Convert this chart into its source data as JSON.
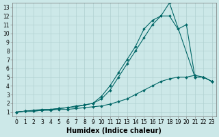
{
  "xlabel": "Humidex (Indice chaleur)",
  "ylabel": "",
  "bg_color": "#cce8e8",
  "grid_color": "#b0d0d0",
  "line_color": "#006666",
  "xlim": [
    -0.5,
    23.5
  ],
  "ylim": [
    0.5,
    13.5
  ],
  "xticks": [
    0,
    1,
    2,
    3,
    4,
    5,
    6,
    7,
    8,
    9,
    10,
    11,
    12,
    13,
    14,
    15,
    16,
    17,
    18,
    19,
    20,
    21,
    22,
    23
  ],
  "yticks": [
    1,
    2,
    3,
    4,
    5,
    6,
    7,
    8,
    9,
    10,
    11,
    12,
    13
  ],
  "curve1_x": [
    0,
    1,
    2,
    3,
    4,
    5,
    6,
    7,
    8,
    9,
    10,
    11,
    12,
    13,
    14,
    15,
    16,
    17,
    18,
    19,
    20,
    21,
    22,
    23
  ],
  "curve1_y": [
    1.0,
    1.1,
    1.1,
    1.2,
    1.2,
    1.3,
    1.3,
    1.4,
    1.5,
    1.6,
    1.7,
    1.9,
    2.2,
    2.5,
    3.0,
    3.5,
    4.0,
    4.5,
    4.8,
    5.0,
    5.0,
    5.2,
    5.0,
    4.5
  ],
  "curve2_x": [
    0,
    1,
    2,
    3,
    4,
    5,
    6,
    7,
    8,
    9,
    10,
    11,
    12,
    13,
    14,
    15,
    16,
    17,
    18,
    21,
    22,
    23
  ],
  "curve2_y": [
    1.0,
    1.1,
    1.1,
    1.2,
    1.3,
    1.4,
    1.5,
    1.6,
    1.8,
    2.0,
    2.5,
    3.5,
    5.0,
    6.5,
    8.0,
    9.5,
    11.0,
    12.0,
    13.5,
    5.0,
    5.0,
    4.5
  ],
  "curve3_x": [
    0,
    1,
    2,
    3,
    4,
    5,
    6,
    7,
    8,
    9,
    10,
    11,
    12,
    13,
    14,
    15,
    16,
    17,
    18,
    19,
    20,
    21,
    22,
    23
  ],
  "curve3_y": [
    1.0,
    1.1,
    1.2,
    1.3,
    1.3,
    1.4,
    1.5,
    1.7,
    1.8,
    2.0,
    2.8,
    4.0,
    5.5,
    7.0,
    8.5,
    10.5,
    11.5,
    12.0,
    12.0,
    10.5,
    11.0,
    5.0,
    5.0,
    4.5
  ],
  "marker": "D",
  "markersize": 2.0,
  "linewidth": 0.8,
  "tick_fontsize": 5.5,
  "xlabel_fontsize": 7,
  "xlabel_fontweight": "bold"
}
